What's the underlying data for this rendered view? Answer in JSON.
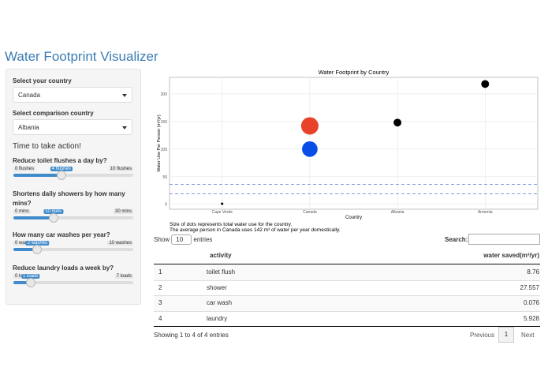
{
  "header": {
    "title": "Water Footprint Visualizer"
  },
  "sidebar": {
    "country": {
      "label": "Select your country",
      "value": "Canada"
    },
    "comparison": {
      "label": "Select comparison country",
      "value": "Albania"
    },
    "heading": "Time to take action!",
    "sliders": [
      {
        "label": "Reduce toilet flushes a day by?",
        "min": {
          "value": 0,
          "label": "0 flushes"
        },
        "max": {
          "value": 10,
          "label": "10 flushes"
        },
        "value": {
          "value": 4,
          "label": "4 flushes"
        }
      },
      {
        "label": "Shortens daily showers by how many mins?",
        "min": {
          "value": 0,
          "label": "0 mins"
        },
        "max": {
          "value": 30,
          "label": "30 mins"
        },
        "value": {
          "value": 10,
          "label": "10 mins"
        }
      },
      {
        "label": "How many car washes per year?",
        "min": {
          "value": 0,
          "label": "0 washes"
        },
        "max": {
          "value": 10,
          "label": "10 washes"
        },
        "value": {
          "value": 2,
          "label": "2 washes"
        }
      },
      {
        "label": "Reduce laundry loads a week by?",
        "min": {
          "value": 0,
          "label": "0 loads"
        },
        "max": {
          "value": 7,
          "label": "7 loads"
        },
        "value": {
          "value": 1,
          "label": "1 loads"
        }
      }
    ]
  },
  "chart_data": {
    "type": "scatter",
    "title": "Water Footprint by Country",
    "x_label": "Country",
    "y_label": "Water Use Per Person (m³/yr)",
    "categories": [
      "Cape Verde",
      "Canada",
      "Albania",
      "Armenia"
    ],
    "series": [
      {
        "color": "#000000",
        "values": [
          1,
          null,
          148,
          218
        ],
        "sizes": [
          3,
          null,
          30,
          30
        ]
      },
      {
        "color": "#e8432a",
        "values": [
          null,
          142,
          null,
          null
        ],
        "sizes": [
          null,
          150,
          null,
          null
        ]
      },
      {
        "color": "#0a4ee8",
        "values": [
          null,
          100,
          null,
          null
        ],
        "sizes": [
          null,
          120,
          null,
          null
        ]
      }
    ],
    "hlines": [
      {
        "value": 36,
        "color": "#6b8fd6"
      },
      {
        "value": 19,
        "color": "#6b8fd6"
      }
    ],
    "ylim": [
      -9,
      230
    ],
    "yticks": [
      0,
      50,
      100,
      150,
      200
    ],
    "grid": true,
    "caption": [
      "Size of dots represents total water use for the country.",
      "The average person in Canada uses 142 m³ of water per year domestically."
    ]
  },
  "table": {
    "show_label": "Show",
    "length_value": "10",
    "entries_label": "entries",
    "search_label": "Search:",
    "columns": [
      "activity",
      "water saved(m³/yr)"
    ],
    "rows": [
      [
        1,
        "toilet flush",
        8.76
      ],
      [
        2,
        "shower",
        27.557
      ],
      [
        3,
        "car wash",
        0.076
      ],
      [
        4,
        "laundry",
        5.928
      ]
    ],
    "info": "Showing 1 to 4 of 4 entries",
    "pagination": [
      "Previous",
      "1",
      "Next"
    ]
  }
}
